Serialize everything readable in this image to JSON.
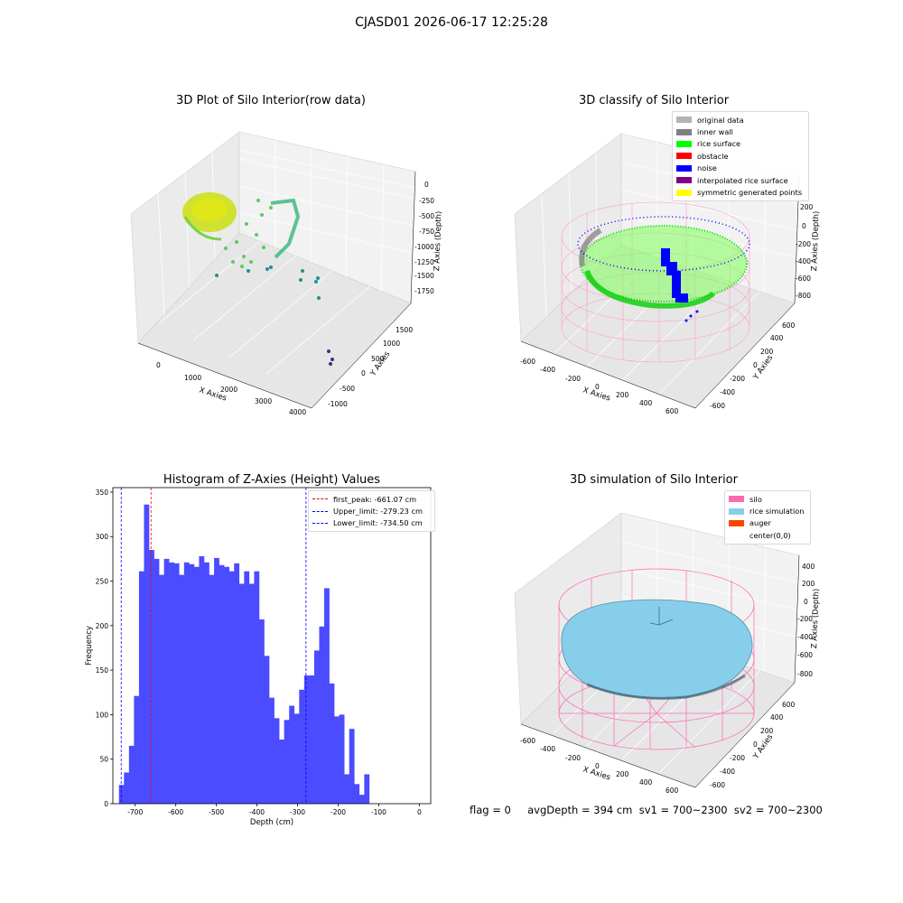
{
  "figure": {
    "suptitle": "CJASD01 2026-06-17 12:25:28",
    "footer": "flag = 0     avgDepth = 394 cm  sv1 = 700~2300  sv2 = 700~2300"
  },
  "panels": {
    "raw": {
      "title": "3D Plot of Silo Interior(row data)",
      "xlabel": "X Axies",
      "ylabel": "Y Axies",
      "zlabel": "Z Axies (Depth)",
      "xticks": [
        "0",
        "1000",
        "2000",
        "3000",
        "4000"
      ],
      "yticks": [
        "-1000",
        "-500",
        "0",
        "500",
        "1000",
        "1500"
      ],
      "zticks": [
        "0",
        "-250",
        "-500",
        "-750",
        "-1000",
        "-1250",
        "-1500",
        "-1750"
      ]
    },
    "classify": {
      "title": "3D classify of Silo Interior",
      "xlabel": "X Axies",
      "ylabel": "Y Axies",
      "zlabel": "Z Axies (Depth)",
      "xticks": [
        "-600",
        "-400",
        "-200",
        "0",
        "200",
        "400",
        "600"
      ],
      "yticks": [
        "-600",
        "-400",
        "-200",
        "0",
        "200",
        "400",
        "600"
      ],
      "zticks": [
        "200",
        "0",
        "-200",
        "-400",
        "-600",
        "-800"
      ],
      "legend": [
        {
          "label": "original data",
          "color": "#b3b3b3"
        },
        {
          "label": "inner wall",
          "color": "#808080"
        },
        {
          "label": "rice surface",
          "color": "#00ff00"
        },
        {
          "label": "obstacle",
          "color": "#ff0000"
        },
        {
          "label": "noise",
          "color": "#0000ff"
        },
        {
          "label": "interpolated rice surface",
          "color": "#800080"
        },
        {
          "label": "symmetric generated points",
          "color": "#ffff00"
        }
      ]
    },
    "simulation": {
      "title": "3D simulation of Silo Interior",
      "xlabel": "X Axies",
      "ylabel": "Y Axies",
      "zlabel": "Z Axies (Depth)",
      "xticks": [
        "-600",
        "-400",
        "-200",
        "0",
        "200",
        "400",
        "600"
      ],
      "yticks": [
        "-600",
        "-400",
        "-200",
        "0",
        "200",
        "400",
        "600"
      ],
      "zticks": [
        "400",
        "200",
        "0",
        "-200",
        "-400",
        "-600",
        "-800"
      ],
      "legend": [
        {
          "label": "silo",
          "color": "#ff69b4"
        },
        {
          "label": "rice simulation",
          "color": "#87ceeb"
        },
        {
          "label": "auger",
          "color": "#ff4500"
        },
        {
          "label": "center(0,0)",
          "color": ""
        }
      ]
    }
  },
  "chart_data": {
    "type": "bar",
    "title": "Histogram of Z-Axies (Height) Values",
    "xlabel": "Depth (cm)",
    "ylabel": "Frequency",
    "xlim": [
      -755,
      28
    ],
    "ylim": [
      0,
      355
    ],
    "xticks": [
      -700,
      -600,
      -500,
      -400,
      -300,
      -200,
      -100,
      0
    ],
    "yticks": [
      0,
      50,
      100,
      150,
      200,
      250,
      300,
      350
    ],
    "bar_color": "#4b4bff",
    "bin_start": -740,
    "bin_width": 12.33,
    "values": [
      21,
      35,
      65,
      121,
      261,
      336,
      285,
      275,
      257,
      275,
      271,
      270,
      257,
      271,
      269,
      266,
      278,
      271,
      257,
      276,
      268,
      266,
      261,
      270,
      247,
      261,
      247,
      261,
      207,
      166,
      119,
      96,
      72,
      94,
      110,
      101,
      128,
      144,
      144,
      172,
      199,
      242,
      135,
      98,
      100,
      33,
      84,
      22,
      10,
      33
    ],
    "vlines": [
      {
        "label": "first_peak: -661.07 cm",
        "x": -661.07,
        "color": "#ff0000"
      },
      {
        "label": "Upper_limit: -279.23 cm",
        "x": -279.23,
        "color": "#0000ff"
      },
      {
        "label": "Lower_limit: -734.50 cm",
        "x": -734.5,
        "color": "#0000ff"
      }
    ],
    "legend_position": "top-right"
  }
}
